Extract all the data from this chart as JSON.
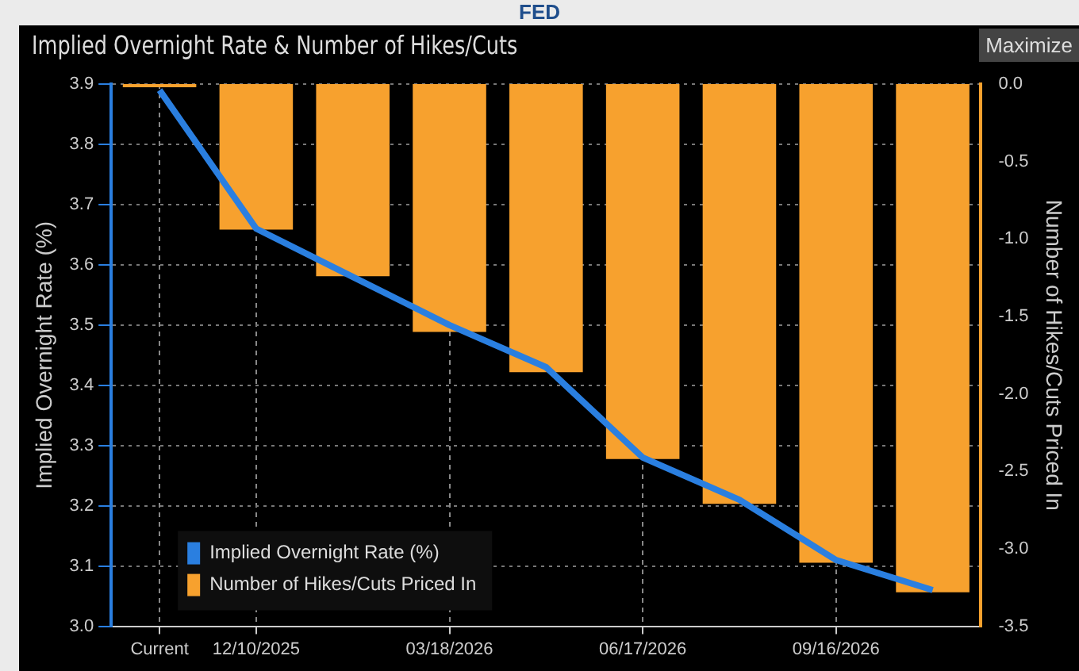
{
  "chart_data": {
    "type": "line",
    "title": "FED",
    "subtitle": "Implied Overnight Rate & Number of Hikes/Cuts",
    "annotations": [
      "Maximize"
    ],
    "categories": [
      "Current",
      "12/10/2025",
      null,
      "03/18/2026",
      null,
      "06/17/2026",
      null,
      "09/16/2026",
      null
    ],
    "series": [
      {
        "name": "Implied Overnight Rate (%)",
        "color": "#2a7fe0",
        "values": [
          3.89,
          3.66,
          3.58,
          3.5,
          3.43,
          3.28,
          3.21,
          3.11,
          3.06
        ]
      },
      {
        "name": "Number of Hikes/Cuts Priced In",
        "type": "bar",
        "axis": "y2",
        "color": "#f7a12e",
        "values": [
          -0.02,
          -0.94,
          -1.24,
          -1.6,
          -1.86,
          -2.42,
          -2.71,
          -3.09,
          -3.28
        ]
      }
    ],
    "ylabel": "Implied Overnight Rate (%)",
    "y2label": "Number of Hikes/Cuts Priced In",
    "ylim": [
      3.0,
      3.9
    ],
    "yticks": [
      {
        "value": 3,
        "label": "3.0"
      },
      3.1,
      3.2,
      3.3,
      3.4,
      3.5,
      3.6,
      3.7,
      3.8,
      3.9
    ],
    "y2lim": [
      -3.5,
      0
    ],
    "y2ticks": [
      {
        "value": -3.5,
        "label": "-3.5"
      },
      {
        "value": -3,
        "label": "-3.0"
      },
      {
        "value": -2.5,
        "label": "-2.5"
      },
      {
        "value": -2,
        "label": "-2.0"
      },
      {
        "value": -1.5,
        "label": "-1.5"
      },
      {
        "value": -1,
        "label": "-1.0"
      },
      {
        "value": -0.5,
        "label": "-0.5"
      },
      {
        "value": 0,
        "label": "0.0"
      }
    ],
    "grid": true,
    "legend": "bottom left",
    "marker": "none",
    "line_style": "solid"
  }
}
